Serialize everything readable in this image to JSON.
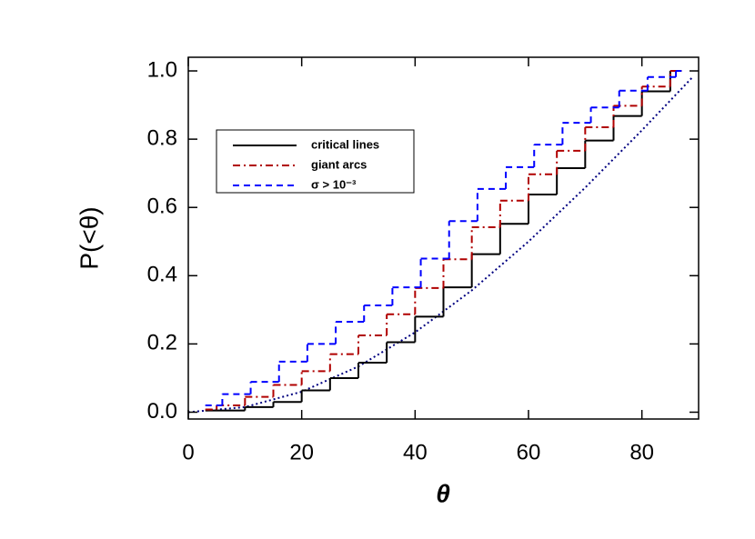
{
  "chart_data": {
    "type": "step",
    "xlabel": "θ",
    "ylabel": "P(<θ)",
    "xlim": [
      0,
      90
    ],
    "ylim": [
      -0.02,
      1.04
    ],
    "xticks": [
      0,
      20,
      40,
      60,
      80
    ],
    "yticks": [
      {
        "value": 0,
        "label": "0.0"
      },
      {
        "value": 0.2,
        "label": "0.2"
      },
      {
        "value": 0.4,
        "label": "0.4"
      },
      {
        "value": 0.6,
        "label": "0.6"
      },
      {
        "value": 0.8,
        "label": "0.8"
      },
      {
        "value": 1,
        "label": "1.0"
      }
    ],
    "legend": "upper left",
    "series": [
      {
        "name": "critical lines",
        "color": "#000000",
        "dash": "solid",
        "bins": [
          3,
          10,
          15,
          20,
          25,
          30,
          35,
          40,
          45,
          50,
          55,
          60,
          65,
          70,
          75,
          80,
          85,
          87
        ],
        "values": [
          0.005,
          0.015,
          0.03,
          0.064,
          0.1,
          0.145,
          0.205,
          0.28,
          0.366,
          0.463,
          0.552,
          0.638,
          0.715,
          0.796,
          0.868,
          0.94,
          1.0
        ]
      },
      {
        "name": "giant arcs",
        "color": "#b00000",
        "dash": "dashdot",
        "bins": [
          3,
          5,
          10,
          15,
          20,
          25,
          30,
          35,
          40,
          45,
          50,
          55,
          60,
          65,
          70,
          75,
          80,
          85,
          87
        ],
        "values": [
          0.008,
          0.02,
          0.045,
          0.08,
          0.12,
          0.17,
          0.225,
          0.287,
          0.364,
          0.448,
          0.542,
          0.62,
          0.697,
          0.766,
          0.835,
          0.898,
          0.954,
          1.0
        ]
      },
      {
        "name": "σ > 10⁻³",
        "color": "#0000ff",
        "dash": "dashed",
        "bins": [
          3,
          6,
          11,
          16,
          21,
          26,
          31,
          36,
          41,
          46,
          51,
          56,
          61,
          66,
          71,
          76,
          81,
          86,
          87
        ],
        "values": [
          0.02,
          0.053,
          0.089,
          0.148,
          0.2,
          0.265,
          0.313,
          0.366,
          0.45,
          0.56,
          0.654,
          0.718,
          0.784,
          0.848,
          0.893,
          0.942,
          0.982,
          1.0
        ]
      }
    ],
    "reference": {
      "color": "#000080",
      "dash": "dotted",
      "x": [
        0,
        10,
        20,
        30,
        40,
        50,
        60,
        70,
        80,
        89
      ],
      "values": [
        0,
        0.015,
        0.06,
        0.134,
        0.234,
        0.357,
        0.5,
        0.658,
        0.826,
        0.983
      ]
    }
  }
}
